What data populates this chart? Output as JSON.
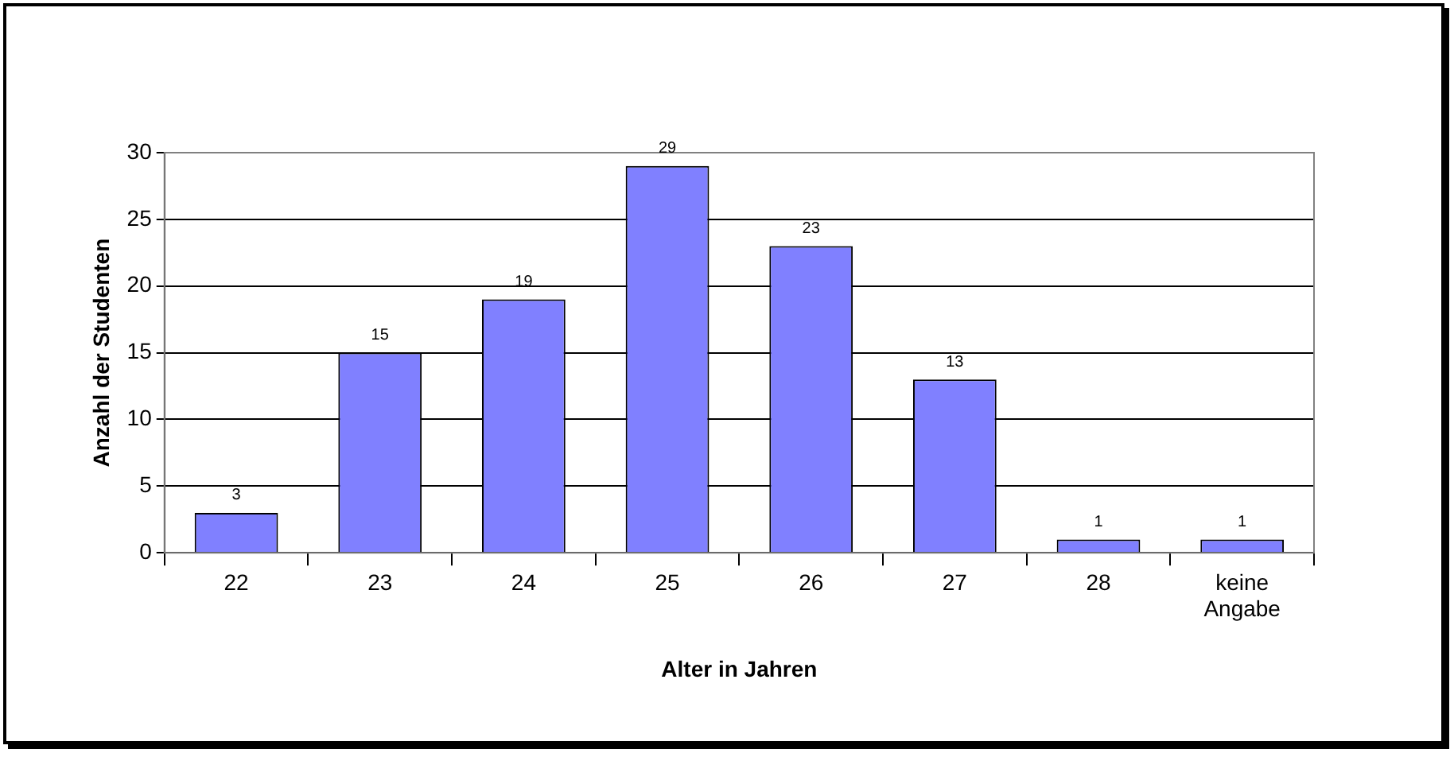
{
  "chart_data": {
    "type": "bar",
    "xlabel": "Alter in Jahren",
    "ylabel": "Anzahl der Studenten",
    "categories": [
      "22",
      "23",
      "24",
      "25",
      "26",
      "27",
      "28",
      "keine Angabe"
    ],
    "values": [
      3,
      15,
      19,
      29,
      23,
      13,
      1,
      1
    ],
    "color": "#8080ff",
    "ylim": [
      0,
      30
    ],
    "yticks": [
      0,
      5,
      10,
      15,
      20,
      25,
      30
    ],
    "grid": "y",
    "data_labels": true,
    "legend": false
  }
}
